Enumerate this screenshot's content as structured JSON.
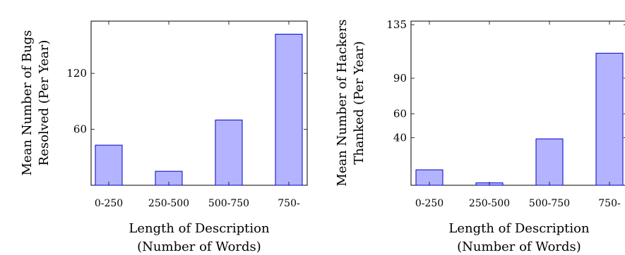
{
  "chart_data": [
    {
      "type": "bar",
      "categories": [
        "0-250",
        "250-500",
        "500-750",
        "750-"
      ],
      "values": [
        43,
        15,
        70,
        162
      ],
      "xlabel": [
        "Length of Description",
        "(Number of Words)"
      ],
      "ylabel": [
        "Mean Number of Bugs",
        "Resolved (Per Year)"
      ],
      "yticks": [
        60,
        120
      ],
      "ylim": [
        0,
        176
      ],
      "grid": false,
      "bar_color": "#b3b3ff",
      "bar_edge_color": "#0000cc"
    },
    {
      "type": "bar",
      "categories": [
        "0-250",
        "250-500",
        "500-750",
        "750-"
      ],
      "values": [
        33,
        22,
        59,
        131
      ],
      "xlabel": [
        "Length of Description",
        "(Number of Words)"
      ],
      "ylabel": [
        "Mean Number of Hackers",
        "Thanked (Per Year)"
      ],
      "yticks": [
        40,
        60,
        90,
        135
      ],
      "ytick_values": [
        60,
        80,
        110,
        155
      ],
      "ylim": [
        20,
        158
      ],
      "grid": false,
      "bar_color": "#b3b3ff",
      "bar_edge_color": "#0000cc"
    }
  ]
}
